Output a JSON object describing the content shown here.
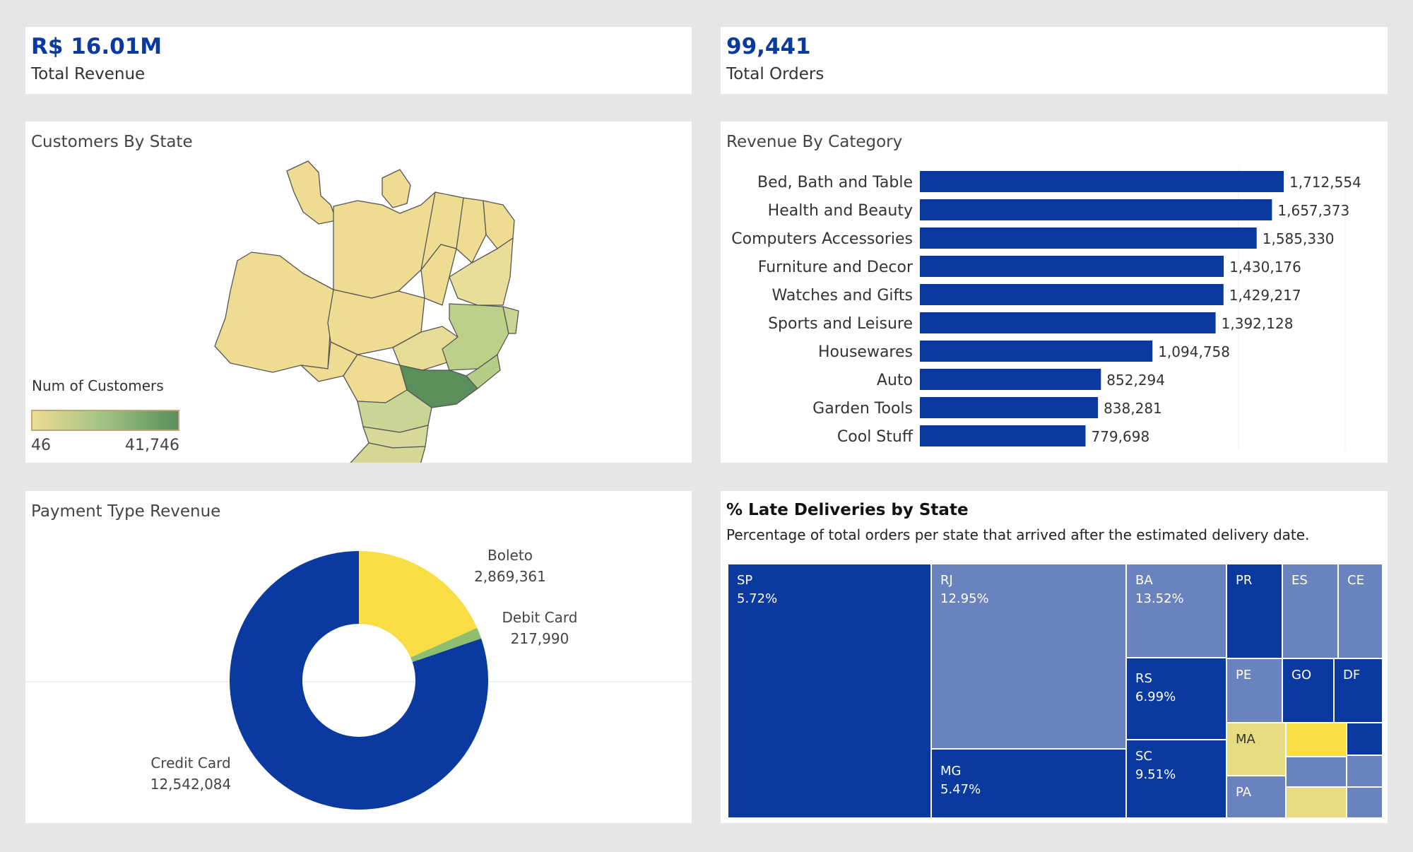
{
  "kpis": {
    "revenue": {
      "value": "R$ 16.01M",
      "label": "Total Revenue"
    },
    "orders": {
      "value": "99,441",
      "label": "Total Orders"
    }
  },
  "customers_by_state": {
    "title": "Customers By State",
    "legend_title": "Num of Customers",
    "legend_min": "46",
    "legend_max": "41,746"
  },
  "revenue_by_category": {
    "title": "Revenue By Category"
  },
  "payment_type_revenue": {
    "title": "Payment Type Revenue"
  },
  "late_deliveries": {
    "title": "% Late Deliveries by State",
    "subtitle": "Percentage of total orders per state that arrived after the estimated delivery date.",
    "cells": [
      {
        "state": "SP",
        "value": "5.72%"
      },
      {
        "state": "RJ",
        "value": "12.95%"
      },
      {
        "state": "MG",
        "value": "5.47%"
      },
      {
        "state": "BA",
        "value": "13.52%"
      },
      {
        "state": "RS",
        "value": "6.99%"
      },
      {
        "state": "SC",
        "value": "9.51%"
      },
      {
        "state": "PR",
        "value": ""
      },
      {
        "state": "ES",
        "value": ""
      },
      {
        "state": "CE",
        "value": ""
      },
      {
        "state": "PE",
        "value": ""
      },
      {
        "state": "GO",
        "value": ""
      },
      {
        "state": "DF",
        "value": ""
      },
      {
        "state": "MA",
        "value": ""
      },
      {
        "state": "PA",
        "value": ""
      }
    ]
  },
  "colors": {
    "navy": "#0a3aa0",
    "light_blue": "#6a82bd",
    "yellow": "#f8dd45",
    "pale_yellow": "#e8dc82",
    "green": "#8fbf6e"
  },
  "chart_data": [
    {
      "type": "bar",
      "title": "Revenue By Category",
      "orientation": "horizontal",
      "categories": [
        "Bed, Bath and Table",
        "Health and Beauty",
        "Computers Accessories",
        "Furniture and Decor",
        "Watches and Gifts",
        "Sports and Leisure",
        "Housewares",
        "Auto",
        "Garden Tools",
        "Cool Stuff"
      ],
      "values": [
        1712554,
        1657373,
        1585330,
        1430176,
        1429217,
        1392128,
        1094758,
        852294,
        838281,
        779698
      ],
      "labels": [
        "1,712,554",
        "1,657,373",
        "1,585,330",
        "1,430,176",
        "1,429,217",
        "1,392,128",
        "1,094,758",
        "852,294",
        "838,281",
        "779,698"
      ],
      "xlim": [
        0,
        2000000
      ]
    },
    {
      "type": "pie",
      "title": "Payment Type Revenue",
      "donut": true,
      "categories": [
        "Boleto",
        "Debit Card",
        "Credit Card"
      ],
      "values": [
        2869361,
        217990,
        12542084
      ],
      "labels": [
        "2,869,361",
        "217,990",
        "12,542,084"
      ],
      "colors": [
        "#f8dd45",
        "#8fbf6e",
        "#0a3aa0"
      ]
    },
    {
      "type": "heatmap",
      "title": "% Late Deliveries by State",
      "states": [
        "SP",
        "RJ",
        "MG",
        "BA",
        "RS",
        "SC"
      ],
      "values": [
        5.72,
        12.95,
        5.47,
        13.52,
        6.99,
        9.51
      ]
    }
  ]
}
